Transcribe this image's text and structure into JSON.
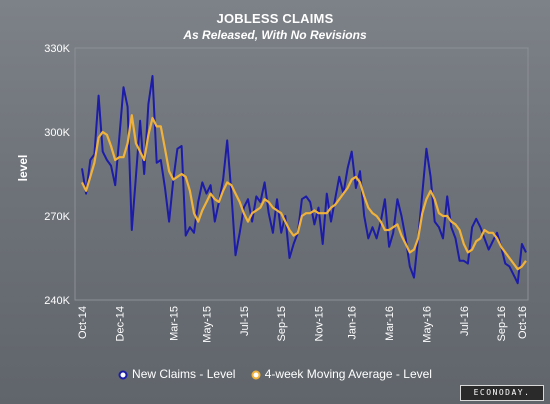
{
  "chart_data": {
    "type": "line",
    "title": "JOBLESS CLAIMS",
    "subtitle": "As Released, With No Revisions",
    "ylabel": "level",
    "ylim": [
      240,
      330
    ],
    "ytick_values": [
      240,
      270,
      300,
      330
    ],
    "ytick_labels": [
      "240K",
      "270K",
      "300K",
      "330K"
    ],
    "xticks": [
      {
        "label": "Oct-14",
        "index": 0
      },
      {
        "label": "Dec-14",
        "index": 9
      },
      {
        "label": "Mar-15",
        "index": 22
      },
      {
        "label": "May-15",
        "index": 30
      },
      {
        "label": "Jul-15",
        "index": 39
      },
      {
        "label": "Sep-15",
        "index": 48
      },
      {
        "label": "Nov-15",
        "index": 57
      },
      {
        "label": "Jan-16",
        "index": 65
      },
      {
        "label": "Mar-16",
        "index": 74
      },
      {
        "label": "May-16",
        "index": 83
      },
      {
        "label": "Jul-16",
        "index": 92
      },
      {
        "label": "Sep-16",
        "index": 101
      },
      {
        "label": "Oct-16",
        "index": 106
      }
    ],
    "grid": false,
    "legend_position": "bottom",
    "series": [
      {
        "name": "New Claims - Level",
        "color": "#1c1ca8",
        "values": [
          287,
          278,
          290,
          292,
          313,
          293,
          290,
          288,
          281,
          298,
          316,
          309,
          265,
          284,
          304,
          285,
          310,
          320,
          289,
          290,
          280,
          268,
          283,
          294,
          295,
          263,
          266,
          264,
          275,
          282,
          278,
          281,
          268,
          275,
          283,
          297,
          278,
          256,
          264,
          273,
          276,
          268,
          277,
          275,
          282,
          271,
          264,
          276,
          264,
          270,
          255,
          260,
          264,
          276,
          277,
          275,
          267,
          273,
          260,
          278,
          268,
          276,
          284,
          278,
          287,
          293,
          280,
          286,
          270,
          262,
          266,
          262,
          268,
          276,
          259,
          264,
          276,
          270,
          262,
          252,
          248,
          262,
          278,
          294,
          284,
          268,
          266,
          262,
          277,
          266,
          262,
          254,
          254,
          253,
          266,
          269,
          266,
          262,
          258,
          261,
          264,
          259,
          253,
          252,
          249,
          246,
          260,
          257
        ],
        "line_values": [
          287,
          278,
          290,
          292,
          313,
          293,
          290,
          288,
          281,
          298,
          316,
          309,
          265,
          284,
          304,
          285,
          310,
          320,
          289,
          290,
          280,
          268,
          283,
          294,
          295,
          263,
          266,
          264,
          275,
          282,
          278,
          281,
          268,
          275,
          283,
          297,
          278,
          256,
          264,
          273,
          276,
          268,
          277,
          275,
          282,
          271,
          264,
          276,
          264,
          270,
          255,
          260,
          264,
          276,
          277,
          275,
          267,
          273,
          260,
          278,
          268,
          276,
          284,
          278,
          287,
          293,
          280,
          286,
          270,
          262,
          266,
          262,
          268,
          276,
          259,
          264,
          276,
          270,
          262,
          252,
          248,
          262,
          278,
          294,
          284,
          268,
          266,
          262,
          277,
          266,
          262,
          254,
          254,
          253,
          266,
          269,
          266,
          262,
          258,
          261,
          264,
          259,
          253,
          252,
          249,
          246,
          260,
          257
        ]
      },
      {
        "name": "4-week Moving Average - Level",
        "color": "#f0b23a",
        "values": [
          282,
          279,
          284,
          289,
          298,
          300,
          299,
          295,
          290,
          291,
          291,
          296,
          306,
          296,
          293,
          290,
          299,
          305,
          302,
          302,
          294,
          286,
          283,
          284,
          285,
          284,
          279,
          271,
          268,
          272,
          275,
          278,
          276,
          275,
          279,
          282,
          281,
          278,
          275,
          271,
          268,
          271,
          272,
          273,
          276,
          275,
          273,
          272,
          271,
          268,
          265,
          263,
          264,
          270,
          271,
          271,
          272,
          271,
          271,
          271,
          273,
          274,
          276,
          278,
          280,
          283,
          284,
          282,
          277,
          273,
          271,
          270,
          268,
          265,
          265,
          266,
          267,
          263,
          260,
          257,
          258,
          262,
          271,
          276,
          279,
          276,
          271,
          270,
          270,
          268,
          267,
          265,
          260,
          257,
          258,
          261,
          262,
          265,
          264,
          264,
          262,
          259,
          257,
          255,
          253,
          251,
          252,
          254
        ]
      }
    ]
  },
  "legend": {
    "item1": "New Claims - Level",
    "item2": "4-week Moving Average - Level"
  },
  "logo_text": "ECONODAY."
}
